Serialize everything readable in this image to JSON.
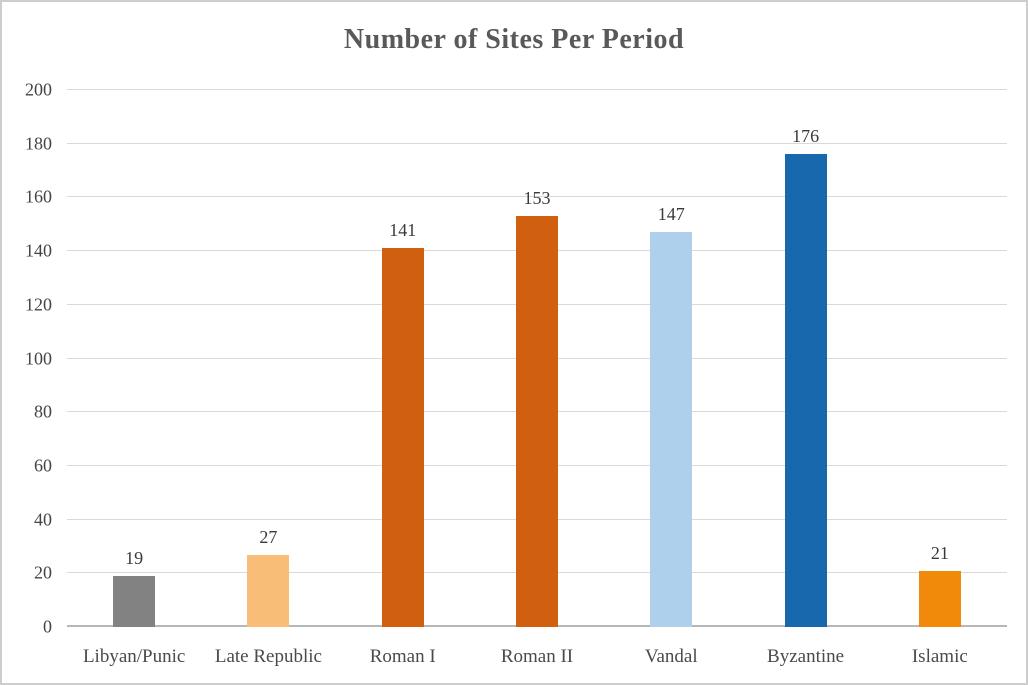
{
  "chart_data": {
    "type": "bar",
    "title": "Number of Sites Per Period",
    "categories": [
      "Libyan/Punic",
      "Late Republic",
      "Roman I",
      "Roman II",
      "Vandal",
      "Byzantine",
      "Islamic"
    ],
    "values": [
      19,
      27,
      141,
      153,
      147,
      176,
      21
    ],
    "bar_colors": [
      "#828282",
      "#f8be78",
      "#d05f10",
      "#d05f10",
      "#aed0ec",
      "#1768ac",
      "#f18a0b"
    ],
    "xlabel": "",
    "ylabel": "",
    "ylim": [
      0,
      200
    ],
    "ytick_step": 20,
    "grid": true,
    "legend": "none",
    "data_labels_shown": true
  },
  "colors": {
    "title_text": "#595959",
    "axis_tick_text": "#444444",
    "category_text": "#4a4a4a",
    "value_label_text": "#3a3a3a",
    "gridline": "#d9d9d9",
    "axis_baseline": "#b7b7b7",
    "frame_border": "#cdcdcd",
    "background": "#ffffff"
  }
}
